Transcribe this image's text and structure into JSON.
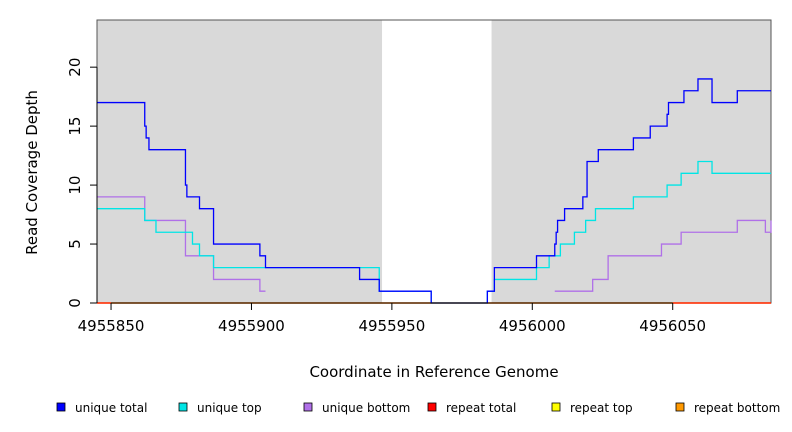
{
  "chart_data": {
    "type": "line",
    "title": "",
    "xlabel": "Coordinate in Reference Genome",
    "ylabel": "Read Coverage Depth",
    "xlim": [
      4955845,
      4956085
    ],
    "ylim": [
      0,
      24
    ],
    "x_ticks": [
      4955850,
      4955900,
      4955950,
      4956000,
      4956050
    ],
    "x_tick_labels": [
      "4955850",
      "4955900",
      "4955950",
      "4956000",
      "4956050"
    ],
    "y_ticks": [
      0,
      5,
      10,
      15,
      20
    ],
    "y_tick_labels": [
      "0",
      "5",
      "10",
      "15",
      "20"
    ],
    "shaded_regions": [
      {
        "x0": 4955845,
        "x1": 4955946.5,
        "color": "#d9d9d9"
      },
      {
        "x0": 4955985.5,
        "x1": 4956085,
        "color": "#d9d9d9"
      }
    ],
    "legend_position": "bottom",
    "series": [
      {
        "name": "unique total",
        "color": "#0000ff",
        "x": [
          4955845,
          4955862,
          4955862.5,
          4955863.5,
          4955866,
          4955876.5,
          4955877,
          4955881.5,
          4955886.5,
          4955903,
          4955905,
          4955938.5,
          4955945.5,
          4955964,
          4955984,
          4955986.5,
          4956001.5,
          4956008,
          4956008.5,
          4956009,
          4956011.5,
          4956018,
          4956019.5,
          4956023.5,
          4956036,
          4956042,
          4956048,
          4956048.5,
          4956054,
          4956059,
          4956064,
          4956073,
          4956085
        ],
        "values": [
          17,
          15,
          14,
          13,
          13,
          10,
          9,
          8,
          5,
          4,
          3,
          2,
          1,
          0,
          1,
          3,
          4,
          5,
          6,
          7,
          8,
          9,
          12,
          13,
          14,
          15,
          16,
          17,
          18,
          19,
          17,
          18,
          18
        ]
      },
      {
        "name": "unique top",
        "color": "#00e5e5",
        "x": [
          4955845,
          4955862,
          4955866,
          4955876,
          4955879,
          4955881.5,
          4955886.5,
          4955905,
          4955945.5,
          4955964,
          4955984,
          4955986.5,
          4956001.5,
          4956006,
          4956010,
          4956015,
          4956019,
          4956022.5,
          4956036,
          4956048,
          4956053,
          4956059,
          4956064,
          4956073,
          4956085
        ],
        "values": [
          8,
          7,
          6,
          6,
          5,
          4,
          3,
          3,
          1,
          0,
          1,
          2,
          3,
          4,
          5,
          6,
          7,
          8,
          9,
          10,
          11,
          12,
          11,
          11,
          11
        ],
        "draw_until": 4955938.5
      },
      {
        "name": "unique bottom",
        "color": "#b070e8",
        "x": [
          4955845,
          4955862,
          4955876.5,
          4955886.5,
          4955903,
          4955905,
          4956008,
          4956021.5,
          4956027,
          4956046,
          4956053,
          4956073,
          4956083,
          4956085
        ],
        "values": [
          9,
          7,
          4,
          2,
          1,
          0,
          1,
          2,
          4,
          5,
          6,
          7,
          6,
          7
        ],
        "draw_from_gap": [
          4955905,
          4955985.5
        ]
      },
      {
        "name": "repeat total",
        "color": "#ff0000",
        "x": [
          4955845,
          4956085
        ],
        "values": [
          0,
          0
        ]
      },
      {
        "name": "repeat top",
        "color": "#ffff00",
        "x": [
          4955845,
          4956085
        ],
        "values": [
          0,
          0
        ]
      },
      {
        "name": "repeat bottom",
        "color": "#ff9900",
        "x": [
          4955845,
          4956085
        ],
        "values": [
          0,
          0
        ]
      }
    ]
  }
}
